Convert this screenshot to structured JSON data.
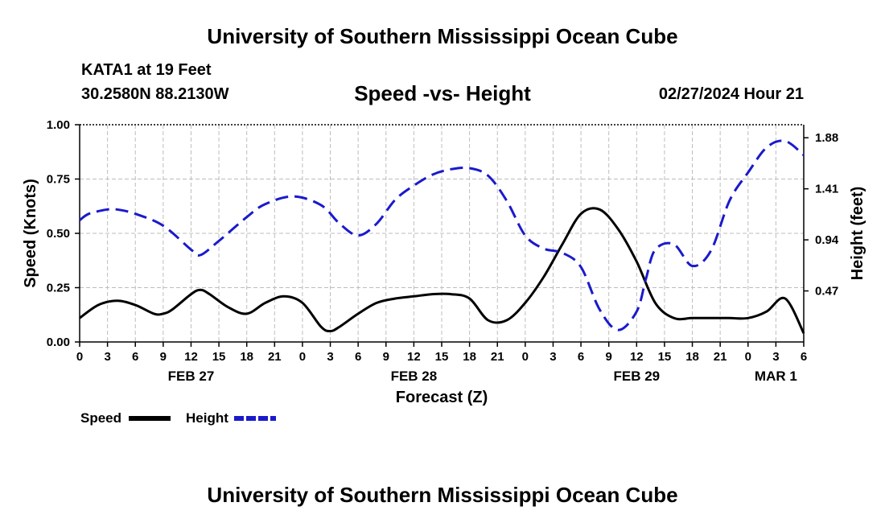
{
  "header": {
    "title": "University of Southern Mississippi Ocean Cube",
    "station": "KATA1 at 19 Feet",
    "coordinates": "30.2580N  88.2130W",
    "issued": "02/27/2024 Hour 21"
  },
  "footer": {
    "title": "University of Southern Mississippi Ocean Cube"
  },
  "colors": {
    "speed": "#000000",
    "height": "#1a1acc",
    "grid": "#bdbdbd"
  },
  "chart_data": {
    "type": "line",
    "title": "Speed -vs- Height",
    "xlabel": "Forecast (Z)",
    "ylabel": "Speed (Knots)",
    "y2label": "Height (feet)",
    "x_range": [
      0,
      78
    ],
    "ylim": [
      0,
      1
    ],
    "y2lim": [
      0,
      2
    ],
    "x_ticks": [
      0,
      3,
      6,
      9,
      12,
      15,
      18,
      21,
      24,
      27,
      30,
      33,
      36,
      39,
      42,
      45,
      48,
      51,
      54,
      57,
      60,
      63,
      66,
      69,
      72,
      75,
      78
    ],
    "x_tick_labels": [
      "0",
      "3",
      "6",
      "9",
      "12",
      "15",
      "18",
      "21",
      "0",
      "3",
      "6",
      "9",
      "12",
      "15",
      "18",
      "21",
      "0",
      "3",
      "6",
      "9",
      "12",
      "15",
      "18",
      "21",
      "0",
      "3",
      "6"
    ],
    "y_ticks": [
      0,
      0.25,
      0.5,
      0.75,
      1.0
    ],
    "y_tick_labels": [
      "0.00",
      "0.25",
      "0.50",
      "0.75",
      "1.00"
    ],
    "y2_ticks": [
      0.47,
      0.94,
      1.41,
      1.88
    ],
    "y2_tick_labels": [
      "0.47",
      "0.94",
      "1.41",
      "1.88"
    ],
    "date_labels": [
      {
        "label": "FEB 27",
        "hour": 12
      },
      {
        "label": "FEB 28",
        "hour": 36
      },
      {
        "label": "FEB 29",
        "hour": 60
      },
      {
        "label": "MAR 1",
        "hour": 75
      }
    ],
    "legend": [
      {
        "name": "Speed",
        "style": "solid"
      },
      {
        "name": "Height",
        "style": "dashed"
      }
    ],
    "series": [
      {
        "name": "Speed",
        "axis": "left",
        "x": [
          0,
          2,
          4,
          6,
          8,
          9,
          10,
          12,
          13,
          14,
          16,
          18,
          20,
          22,
          24,
          26,
          27,
          28,
          30,
          32,
          34,
          36,
          38,
          40,
          42,
          44,
          46,
          48,
          50,
          52,
          54,
          56,
          58,
          60,
          62,
          64,
          66,
          68,
          70,
          72,
          74,
          76,
          78
        ],
        "values": [
          0.11,
          0.17,
          0.19,
          0.17,
          0.13,
          0.13,
          0.15,
          0.22,
          0.24,
          0.22,
          0.16,
          0.13,
          0.18,
          0.21,
          0.18,
          0.07,
          0.05,
          0.07,
          0.13,
          0.18,
          0.2,
          0.21,
          0.22,
          0.22,
          0.2,
          0.1,
          0.1,
          0.18,
          0.3,
          0.45,
          0.59,
          0.61,
          0.52,
          0.37,
          0.18,
          0.11,
          0.11,
          0.11,
          0.11,
          0.11,
          0.14,
          0.2,
          0.04
        ]
      },
      {
        "name": "Height",
        "axis": "right",
        "x": [
          0,
          1,
          3,
          4,
          6,
          9,
          12,
          13,
          15,
          18,
          20,
          23,
          26,
          28,
          30,
          32,
          34,
          36,
          38,
          40,
          42,
          44,
          46,
          48,
          50,
          52,
          54,
          56,
          58,
          60,
          61,
          62,
          64,
          66,
          68,
          70,
          72,
          74,
          76,
          78
        ],
        "values": [
          1.12,
          1.18,
          1.22,
          1.22,
          1.18,
          1.07,
          0.85,
          0.8,
          0.93,
          1.15,
          1.27,
          1.34,
          1.26,
          1.09,
          0.98,
          1.09,
          1.31,
          1.44,
          1.54,
          1.59,
          1.6,
          1.53,
          1.3,
          0.98,
          0.86,
          0.82,
          0.69,
          0.3,
          0.11,
          0.28,
          0.58,
          0.85,
          0.9,
          0.7,
          0.84,
          1.3,
          1.56,
          1.79,
          1.85,
          1.72
        ]
      }
    ]
  }
}
